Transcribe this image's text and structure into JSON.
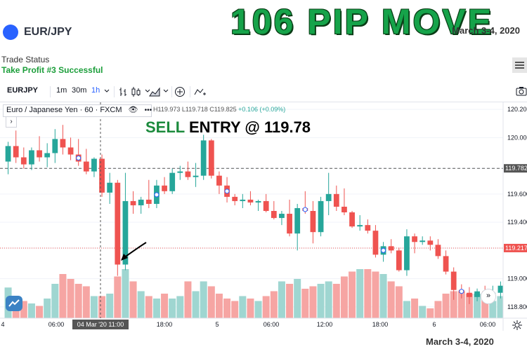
{
  "header": {
    "pair": "EUR/JPY",
    "headline": "106 PIP MOVE",
    "date": "March 3-4, 2020",
    "pair_dot_color": "#2962ff"
  },
  "trade_status": {
    "title": "Trade Status",
    "value": "Take Profit #3 Successful"
  },
  "toolbar": {
    "symbol": "EURJPY",
    "intervals": [
      "1m",
      "30m",
      "1h"
    ],
    "active_interval": "1h",
    "icons": [
      "chevron-down-icon",
      "bar-chart-icon",
      "candles-icon",
      "chevron-down-icon",
      "area-chart-icon",
      "chevron-down-icon",
      "add-indicator-icon",
      "compare-icon",
      "camera-icon"
    ]
  },
  "legend": {
    "title": "Euro / Japanese Yen · 60 · FXCM",
    "high": "H119.973",
    "low": "L119.718",
    "close": "C119.825",
    "change": "+0.106 (+0.09%)",
    "more": "•••"
  },
  "annotation": {
    "sell": "SELL",
    "rest": " ENTRY @  119.78"
  },
  "footer_date": "March 3-4, 2020",
  "chart_data": {
    "type": "candlestick",
    "symbol": "EUR/JPY",
    "timeframe": "60",
    "x_ticks": [
      "4",
      "06:00",
      "04 Mar '20  11:00",
      "18:00",
      "5",
      "06:00",
      "12:00",
      "18:00",
      "6",
      "06:00"
    ],
    "y_ticks": [
      "120.200",
      "120.000",
      "119.782",
      "119.600",
      "119.400",
      "119.217",
      "119.000",
      "118.800"
    ],
    "ylim": [
      118.72,
      120.25
    ],
    "price_lines": [
      {
        "label": "119.782",
        "value": 119.782,
        "color": "#555555",
        "style": "dashed"
      },
      {
        "label": "119.217",
        "value": 119.217,
        "color": "#ef5350",
        "style": "dotted"
      }
    ],
    "colors": {
      "up": "#26a69a",
      "down": "#ef5350",
      "vol_up": "#9fd6d1",
      "vol_down": "#f6a5a3"
    },
    "candles": [
      [
        119.83,
        119.97,
        119.74,
        119.94
      ],
      [
        119.94,
        120.05,
        119.82,
        119.86
      ],
      [
        119.86,
        119.93,
        119.78,
        119.81
      ],
      [
        119.81,
        119.93,
        119.77,
        119.91
      ],
      [
        119.91,
        120.01,
        119.83,
        119.86
      ],
      [
        119.86,
        119.96,
        119.79,
        119.89
      ],
      [
        119.89,
        120.06,
        119.82,
        119.99
      ],
      [
        119.99,
        120.09,
        119.88,
        119.93
      ],
      [
        119.93,
        120.0,
        119.84,
        119.88
      ],
      [
        119.88,
        119.99,
        119.8,
        119.83
      ],
      [
        119.83,
        119.92,
        119.74,
        119.76
      ],
      [
        119.76,
        119.86,
        119.72,
        119.85
      ],
      [
        119.85,
        119.88,
        119.58,
        119.61
      ],
      [
        119.61,
        119.75,
        119.53,
        119.68
      ],
      [
        119.68,
        119.7,
        119.02,
        119.1
      ],
      [
        119.1,
        119.75,
        119.06,
        119.55
      ],
      [
        119.55,
        119.62,
        119.46,
        119.52
      ],
      [
        119.52,
        119.58,
        119.46,
        119.56
      ],
      [
        119.56,
        119.7,
        119.5,
        119.53
      ],
      [
        119.53,
        119.7,
        119.5,
        119.66
      ],
      [
        119.66,
        119.72,
        119.6,
        119.62
      ],
      [
        119.62,
        119.78,
        119.6,
        119.75
      ],
      [
        119.75,
        119.8,
        119.7,
        119.76
      ],
      [
        119.76,
        119.83,
        119.7,
        119.72
      ],
      [
        119.72,
        119.82,
        119.65,
        119.73
      ],
      [
        119.73,
        120.02,
        119.7,
        119.98
      ],
      [
        119.98,
        119.99,
        119.71,
        119.73
      ],
      [
        119.73,
        119.76,
        119.6,
        119.66
      ],
      [
        119.66,
        119.72,
        119.54,
        119.58
      ],
      [
        119.58,
        119.6,
        119.52,
        119.55
      ],
      [
        119.55,
        119.6,
        119.5,
        119.56
      ],
      [
        119.56,
        119.62,
        119.52,
        119.54
      ],
      [
        119.54,
        119.56,
        119.48,
        119.55
      ],
      [
        119.55,
        119.6,
        119.47,
        119.48
      ],
      [
        119.48,
        119.55,
        119.42,
        119.43
      ],
      [
        119.43,
        119.48,
        119.38,
        119.46
      ],
      [
        119.46,
        119.56,
        119.3,
        119.32
      ],
      [
        119.32,
        119.53,
        119.2,
        119.5
      ],
      [
        119.5,
        119.62,
        119.46,
        119.48
      ],
      [
        119.48,
        119.55,
        119.25,
        119.33
      ],
      [
        119.33,
        119.58,
        119.3,
        119.55
      ],
      [
        119.55,
        119.75,
        119.45,
        119.6
      ],
      [
        119.6,
        119.66,
        119.48,
        119.51
      ],
      [
        119.51,
        119.64,
        119.45,
        119.47
      ],
      [
        119.47,
        119.48,
        119.36,
        119.37
      ],
      [
        119.37,
        119.45,
        119.34,
        119.38
      ],
      [
        119.38,
        119.42,
        119.32,
        119.34
      ],
      [
        119.34,
        119.38,
        119.15,
        119.17
      ],
      [
        119.17,
        119.26,
        119.12,
        119.23
      ],
      [
        119.23,
        119.28,
        119.18,
        119.2
      ],
      [
        119.2,
        119.22,
        119.05,
        119.06
      ],
      [
        119.06,
        119.35,
        119.02,
        119.3
      ],
      [
        119.3,
        119.32,
        119.18,
        119.26
      ],
      [
        119.26,
        119.3,
        119.24,
        119.27
      ],
      [
        119.27,
        119.3,
        119.2,
        119.24
      ],
      [
        119.24,
        119.28,
        119.14,
        119.16
      ],
      [
        119.16,
        119.2,
        119.03,
        119.05
      ],
      [
        119.05,
        119.08,
        118.85,
        118.92
      ],
      [
        118.92,
        118.96,
        118.86,
        118.9
      ],
      [
        118.9,
        118.94,
        118.82,
        118.87
      ],
      [
        118.87,
        118.93,
        118.84,
        118.91
      ],
      [
        118.91,
        118.95,
        118.85,
        118.88
      ],
      [
        118.88,
        118.95,
        118.84,
        118.9
      ],
      [
        118.9,
        118.98,
        118.86,
        118.95
      ]
    ],
    "volumes": [
      25,
      18,
      14,
      12,
      10,
      16,
      28,
      36,
      32,
      28,
      26,
      18,
      18,
      20,
      34,
      40,
      30,
      22,
      18,
      16,
      20,
      16,
      18,
      30,
      22,
      30,
      26,
      20,
      16,
      14,
      18,
      16,
      14,
      18,
      22,
      30,
      28,
      32,
      24,
      26,
      28,
      30,
      28,
      34,
      38,
      40,
      40,
      38,
      36,
      30,
      26,
      14,
      16,
      10,
      8,
      14,
      20,
      22,
      22,
      20,
      20,
      18,
      14,
      18
    ]
  }
}
